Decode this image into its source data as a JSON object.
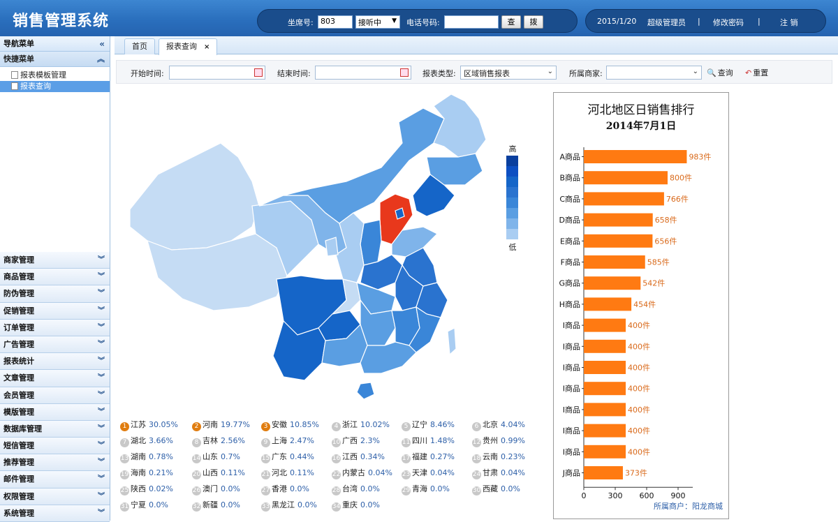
{
  "app": {
    "title": "销售管理系统"
  },
  "topbar": {
    "seat_label": "坐席号:",
    "seat_value": "803",
    "status_value": "接听中",
    "phone_label": "电话号码:",
    "phone_value": "",
    "query_btn": "查",
    "dial_btn": "拨",
    "date": "2015/1/20",
    "user": "超级管理员",
    "change_pwd": "修改密码",
    "sep": "|",
    "logout": "注 销"
  },
  "sidebar": {
    "nav_title": "导航菜单",
    "quick_title": "快捷菜单",
    "quick_items": [
      "报表模板管理",
      "报表查询"
    ],
    "menu": [
      "商家管理",
      "商品管理",
      "防伪管理",
      "促销管理",
      "订单管理",
      "广告管理",
      "报表统计",
      "文章管理",
      "会员管理",
      "模版管理",
      "数据库管理",
      "短信管理",
      "推荐管理",
      "邮件管理",
      "权限管理",
      "系统管理"
    ],
    "collapse_glyph": "«",
    "up_glyph": "︽",
    "down_glyph": "︾"
  },
  "tabs": {
    "home": "首页",
    "current": "报表查询",
    "close": "×"
  },
  "filters": {
    "start_label": "开始时间:",
    "end_label": "结束时间:",
    "type_label": "报表类型:",
    "type_value": "区域销售报表",
    "merchant_label": "所属商家:",
    "merchant_value": "",
    "query": "查询",
    "reset": "重置"
  },
  "map": {
    "legend_high": "高",
    "legend_low": "低",
    "colors": {
      "highlight": "#e8381c",
      "c1": "#0d4fc2",
      "c2": "#1565c8",
      "c3": "#2a73cf",
      "c4": "#3a86d8",
      "c5": "#5a9ee2",
      "c6": "#7fb4ea",
      "c7": "#a9cdf2",
      "c8": "#c5dcf4"
    },
    "ranks": [
      {
        "n": "1",
        "name": "江苏",
        "pct": "30.05%"
      },
      {
        "n": "2",
        "name": "河南",
        "pct": "19.77%"
      },
      {
        "n": "3",
        "name": "安徽",
        "pct": "10.85%"
      },
      {
        "n": "4",
        "name": "浙江",
        "pct": "10.02%"
      },
      {
        "n": "5",
        "name": "辽宁",
        "pct": "8.46%"
      },
      {
        "n": "6",
        "name": "北京",
        "pct": "4.04%"
      },
      {
        "n": "7",
        "name": "湖北",
        "pct": "3.66%"
      },
      {
        "n": "8",
        "name": "吉林",
        "pct": "2.56%"
      },
      {
        "n": "9",
        "name": "上海",
        "pct": "2.47%"
      },
      {
        "n": "10",
        "name": "广西",
        "pct": "2.3%"
      },
      {
        "n": "11",
        "name": "四川",
        "pct": "1.48%"
      },
      {
        "n": "12",
        "name": "贵州",
        "pct": "0.99%"
      },
      {
        "n": "13",
        "name": "湖南",
        "pct": "0.78%"
      },
      {
        "n": "14",
        "name": "山东",
        "pct": "0.7%"
      },
      {
        "n": "15",
        "name": "广东",
        "pct": "0.44%"
      },
      {
        "n": "16",
        "name": "江西",
        "pct": "0.34%"
      },
      {
        "n": "17",
        "name": "福建",
        "pct": "0.27%"
      },
      {
        "n": "18",
        "name": "云南",
        "pct": "0.23%"
      },
      {
        "n": "19",
        "name": "海南",
        "pct": "0.21%"
      },
      {
        "n": "20",
        "name": "山西",
        "pct": "0.11%"
      },
      {
        "n": "21",
        "name": "河北",
        "pct": "0.11%"
      },
      {
        "n": "22",
        "name": "内蒙古",
        "pct": "0.04%"
      },
      {
        "n": "23",
        "name": "天津",
        "pct": "0.04%"
      },
      {
        "n": "24",
        "name": "甘肃",
        "pct": "0.04%"
      },
      {
        "n": "25",
        "name": "陕西",
        "pct": "0.02%"
      },
      {
        "n": "26",
        "name": "澳门",
        "pct": "0.0%"
      },
      {
        "n": "27",
        "name": "香港",
        "pct": "0.0%"
      },
      {
        "n": "28",
        "name": "台湾",
        "pct": "0.0%"
      },
      {
        "n": "29",
        "name": "青海",
        "pct": "0.0%"
      },
      {
        "n": "30",
        "name": "西藏",
        "pct": "0.0%"
      },
      {
        "n": "31",
        "name": "宁夏",
        "pct": "0.0%"
      },
      {
        "n": "32",
        "name": "新疆",
        "pct": "0.0%"
      },
      {
        "n": "33",
        "name": "黑龙江",
        "pct": "0.0%"
      },
      {
        "n": "34",
        "name": "重庆",
        "pct": "0.0%"
      }
    ]
  },
  "chart_data": {
    "type": "bar",
    "orientation": "horizontal",
    "title": "河北地区日销售排行",
    "subtitle": "2014年7月1日",
    "categories": [
      "A商品",
      "B商品",
      "C商品",
      "D商品",
      "E商品",
      "F商品",
      "G商品",
      "H商品",
      "I商品",
      "I商品",
      "I商品",
      "I商品",
      "I商品",
      "I商品",
      "I商品",
      "J商品"
    ],
    "values": [
      983,
      800,
      766,
      658,
      656,
      585,
      542,
      454,
      400,
      400,
      400,
      400,
      400,
      400,
      400,
      373
    ],
    "unit": "件",
    "xticks": [
      0,
      300,
      600,
      900
    ],
    "xlim": [
      0,
      1000
    ],
    "bar_color": "#ff7a12",
    "label_color": "#d9691a",
    "footer": "所属商户：阳龙商城"
  }
}
